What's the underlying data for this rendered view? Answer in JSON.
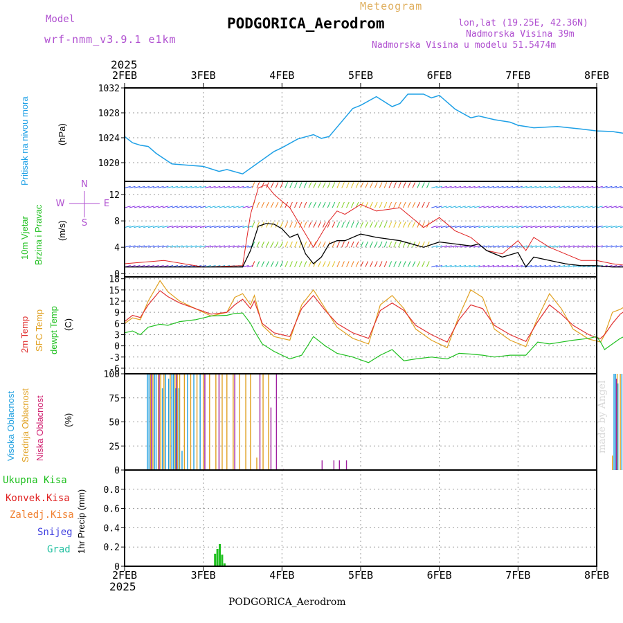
{
  "header": {
    "model_label": "Model",
    "model_name": "wrf-nmm_v3.9.1 e1km",
    "meteogram_label": "Meteogram",
    "station_title": "PODGORICA_Aerodrom",
    "lonlat": "lon,lat (19.25E, 42.36N)",
    "altitude": "Nadmorska Visina 39m",
    "model_altitude": "Nadmorska Visina u modelu 51.5474m",
    "year_top": "2025",
    "year_bottom": "2025",
    "footer_title": "PODGORICA_Aerodrom",
    "credit": "made by Angel"
  },
  "colors": {
    "pressure": "#1ea0e6",
    "wind_speed": "#000000",
    "wind_gust": "#e02020",
    "temp_2m": "#e03030",
    "temp_sfc": "#e0a020",
    "dewpoint": "#20c020",
    "cloud_high": "#20a0e0",
    "cloud_mid": "#e0a020",
    "cloud_low": "#a020a0",
    "precip_total": "#20c020",
    "precip_conv": "#e02020",
    "precip_frz": "#f08030",
    "precip_snow": "#4040e0",
    "precip_grad": "#20c0a0",
    "title_purple": "#b050d0",
    "meteogram_orange": "#e0b060"
  },
  "chart_data": [
    {
      "type": "line",
      "title": "Pritisak na nivou mora",
      "ylabel": "(hPa)",
      "ylim": [
        1017,
        1032
      ],
      "yticks": [
        1020,
        1024,
        1028,
        1032
      ],
      "x_day": [
        0,
        0.1,
        0.2,
        0.3,
        0.4,
        0.6,
        0.8,
        1.0,
        1.2,
        1.3,
        1.5,
        1.7,
        1.9,
        2.0,
        2.2,
        2.4,
        2.5,
        2.6,
        2.8,
        2.9,
        3.0,
        3.2,
        3.4,
        3.5,
        3.6,
        3.8,
        3.9,
        4.0,
        4.2,
        4.4,
        4.5,
        4.7,
        4.9,
        5.0,
        5.2,
        5.5,
        5.8,
        6.0,
        6.2,
        6.4,
        6.5,
        6.7,
        6.9,
        7.0
      ],
      "values": [
        1024.2,
        1023.2,
        1022.8,
        1022.6,
        1021.5,
        1019.8,
        1019.6,
        1019.4,
        1018.6,
        1018.9,
        1018.2,
        1020.0,
        1021.8,
        1022.4,
        1023.8,
        1024.5,
        1023.9,
        1024.2,
        1027.2,
        1028.7,
        1029.2,
        1030.6,
        1029.0,
        1029.5,
        1031.0,
        1031.0,
        1030.4,
        1030.8,
        1028.6,
        1027.2,
        1027.5,
        1026.9,
        1026.5,
        1026.0,
        1025.6,
        1025.8,
        1025.4,
        1025.1,
        1025.0,
        1024.6,
        1025.5,
        1026.4,
        1026.2,
        1026.1
      ]
    },
    {
      "type": "line",
      "title": "10m Vjetar Brzina i Pravac",
      "ylabel": "(m/s)",
      "ylim": [
        -0.5,
        14
      ],
      "yticks": [
        0,
        4,
        8,
        12
      ],
      "compass": [
        "N",
        "W",
        "E",
        "S"
      ],
      "x_day": [
        0,
        0.5,
        1.0,
        1.5,
        1.6,
        1.7,
        1.8,
        1.9,
        2.0,
        2.1,
        2.2,
        2.3,
        2.4,
        2.5,
        2.6,
        2.7,
        2.8,
        3.0,
        3.2,
        3.5,
        3.8,
        4.0,
        4.2,
        4.4,
        4.5,
        4.6,
        4.8,
        5.0,
        5.1,
        5.2,
        5.4,
        5.6,
        5.8,
        6.0,
        6.2,
        6.4,
        6.6,
        6.8,
        7.0
      ],
      "series": [
        {
          "name": "wind",
          "values": [
            1.0,
            1.0,
            1.0,
            1.0,
            3.5,
            7.2,
            7.6,
            7.5,
            6.8,
            5.5,
            6.0,
            3.0,
            1.5,
            2.5,
            4.5,
            5.0,
            5.0,
            6.0,
            5.5,
            5.0,
            4.0,
            4.8,
            4.5,
            4.2,
            4.5,
            3.5,
            2.5,
            3.2,
            1.0,
            2.5,
            2.0,
            1.5,
            1.2,
            1.2,
            1.0,
            1.0,
            1.5,
            2.0,
            1.0
          ]
        },
        {
          "name": "gust",
          "values": [
            1.5,
            2.0,
            1.0,
            1.2,
            9.0,
            13.0,
            13.5,
            12.0,
            11.0,
            10.0,
            8.0,
            6.0,
            4.0,
            6.0,
            8.0,
            9.5,
            9.0,
            10.5,
            9.5,
            10.0,
            7.0,
            8.5,
            6.5,
            5.5,
            4.5,
            3.5,
            3.0,
            5.0,
            3.5,
            5.5,
            4.0,
            3.0,
            2.0,
            2.0,
            1.5,
            1.2,
            3.0,
            2.5,
            1.2
          ]
        }
      ]
    },
    {
      "type": "line",
      "title": "2m Temp / SFC Temp / dewpt Temp",
      "ylabel": "(C)",
      "ylim": [
        -7.5,
        18.5
      ],
      "yticks": [
        -6,
        -3,
        0,
        3,
        6,
        9,
        12,
        15,
        18
      ],
      "x_day": [
        0,
        0.1,
        0.2,
        0.3,
        0.45,
        0.55,
        0.7,
        0.9,
        1.1,
        1.3,
        1.4,
        1.5,
        1.6,
        1.65,
        1.75,
        1.9,
        2.1,
        2.25,
        2.4,
        2.55,
        2.7,
        2.9,
        3.1,
        3.25,
        3.4,
        3.55,
        3.7,
        3.9,
        4.1,
        4.25,
        4.4,
        4.55,
        4.7,
        4.9,
        5.1,
        5.25,
        5.4,
        5.55,
        5.7,
        5.9,
        6.0,
        6.05,
        6.1,
        6.2,
        6.3,
        6.4,
        6.5,
        6.6,
        6.8,
        7.0
      ],
      "series": [
        {
          "name": "2m Temp",
          "values": [
            6.5,
            8.2,
            7.6,
            11.0,
            14.8,
            13.2,
            11.5,
            10.0,
            8.5,
            9.0,
            11.0,
            12.5,
            10.0,
            12.0,
            6.0,
            3.5,
            2.5,
            10.0,
            13.5,
            9.5,
            6.0,
            3.5,
            2.0,
            9.5,
            11.5,
            9.5,
            5.5,
            3.0,
            1.0,
            7.0,
            11.0,
            10.0,
            5.5,
            3.0,
            1.2,
            6.5,
            11.0,
            8.5,
            5.5,
            3.0,
            2.2,
            2.0,
            3.0,
            6.0,
            8.5,
            10.0,
            8.5,
            7.0,
            6.2,
            6.0
          ]
        },
        {
          "name": "SFC Temp",
          "values": [
            6.0,
            7.5,
            7.0,
            12.0,
            17.5,
            14.5,
            12.0,
            10.0,
            8.0,
            9.0,
            13.0,
            14.0,
            11.0,
            13.5,
            5.5,
            2.5,
            1.5,
            11.0,
            15.0,
            10.0,
            5.0,
            2.0,
            0.5,
            11.0,
            13.5,
            10.0,
            4.5,
            1.5,
            -0.5,
            8.0,
            15.0,
            13.0,
            4.5,
            1.5,
            -0.2,
            7.5,
            14.0,
            10.0,
            4.5,
            1.8,
            1.3,
            1.0,
            3.0,
            9.0,
            9.8,
            11.0,
            9.0,
            7.0,
            6.0,
            5.8
          ]
        },
        {
          "name": "dewpt Temp",
          "values": [
            3.5,
            4.0,
            3.0,
            5.0,
            5.8,
            5.5,
            6.5,
            7.0,
            8.0,
            8.2,
            8.7,
            8.8,
            6.0,
            4.0,
            0.5,
            -1.5,
            -3.5,
            -2.5,
            2.5,
            0.0,
            -2.0,
            -3.0,
            -4.5,
            -2.5,
            -1.0,
            -4.0,
            -3.5,
            -3.0,
            -3.5,
            -2.0,
            -2.2,
            -2.5,
            -3.0,
            -2.5,
            -2.5,
            1.0,
            0.5,
            1.0,
            1.5,
            2.0,
            2.5,
            1.0,
            -1.0,
            0.5,
            2.0,
            3.0,
            3.5,
            4.0,
            4.3,
            4.4
          ]
        }
      ]
    },
    {
      "type": "bar",
      "title": "Visoka Oblacnost / Srednja Oblacnost / Niska Oblacnost",
      "ylabel": "(%)",
      "ylim": [
        0,
        100
      ],
      "yticks": [
        0,
        25,
        50,
        75,
        100
      ],
      "series": [
        {
          "name": "Visoka Oblacnost",
          "x_day": [
            0.29,
            0.31,
            0.38,
            0.4,
            0.48,
            0.52,
            0.56,
            0.6,
            0.62,
            0.65,
            0.69,
            0.73,
            0.8,
            0.88,
            0.96,
            6.22,
            6.24,
            6.27,
            6.32,
            6.36,
            6.42,
            6.5,
            6.56,
            6.64,
            6.74,
            6.82,
            6.94,
            7.0
          ],
          "values": [
            100,
            100,
            100,
            100,
            85,
            100,
            95,
            100,
            100,
            85,
            85,
            20,
            100,
            100,
            100,
            100,
            100,
            90,
            100,
            100,
            100,
            100,
            100,
            100,
            100,
            100,
            100,
            100
          ]
        },
        {
          "name": "Srednja Oblacnost",
          "x_day": [
            0.33,
            0.36,
            0.43,
            0.46,
            0.5,
            0.58,
            0.64,
            0.67,
            0.7,
            0.76,
            0.84,
            0.92,
            1.0,
            1.08,
            1.16,
            1.24,
            1.3,
            1.38,
            1.46,
            1.54,
            1.6,
            1.68,
            1.76,
            1.83,
            6.2,
            6.26,
            6.3,
            6.34,
            6.38,
            6.44,
            6.48,
            6.52,
            6.58,
            6.62,
            6.68,
            6.72,
            6.78,
            6.86,
            6.9,
            6.98
          ],
          "values": [
            100,
            100,
            100,
            100,
            100,
            100,
            100,
            100,
            100,
            100,
            100,
            100,
            100,
            100,
            100,
            100,
            100,
            100,
            100,
            100,
            100,
            13,
            100,
            100,
            15,
            100,
            100,
            100,
            100,
            100,
            100,
            100,
            100,
            100,
            100,
            100,
            100,
            100,
            100,
            100
          ]
        },
        {
          "name": "Niska Oblacnost",
          "x_day": [
            0.34,
            0.44,
            0.66,
            1.02,
            1.2,
            1.4,
            1.72,
            1.86,
            1.93,
            2.02,
            2.51,
            2.66,
            2.73,
            2.82,
            6.25,
            6.4,
            6.66
          ],
          "values": [
            100,
            100,
            100,
            100,
            100,
            100,
            100,
            65,
            100,
            1,
            10,
            10,
            10,
            10,
            95,
            100,
            100
          ]
        }
      ]
    },
    {
      "type": "bar",
      "title": "Ukupna Kisa / Konvek.Kisa / Zaledj.Kisa / Snijeg / Grad",
      "ylabel": "1hr Precip (mm)",
      "ylim": [
        0,
        1.0
      ],
      "yticks": [
        0,
        0.2,
        0.4,
        0.6,
        0.8
      ],
      "series": [
        {
          "name": "Ukupna Kisa",
          "x_day": [
            1.15,
            1.18,
            1.21,
            1.24,
            1.27,
            6.9
          ],
          "values": [
            0.13,
            0.18,
            0.23,
            0.12,
            0.03,
            0.04
          ]
        },
        {
          "name": "Konvek.Kisa",
          "x_day": [],
          "values": []
        },
        {
          "name": "Zaledj.Kisa",
          "x_day": [],
          "values": []
        },
        {
          "name": "Snijeg",
          "x_day": [],
          "values": []
        },
        {
          "name": "Grad",
          "x_day": [],
          "values": []
        }
      ]
    }
  ],
  "x_axis": {
    "start": "2FEB",
    "days": [
      "2FEB",
      "3FEB",
      "4FEB",
      "5FEB",
      "6FEB",
      "7FEB",
      "8FEB"
    ]
  },
  "panel_labels": {
    "pressure": [
      "Pritisak na nivou mora",
      "(hPa)"
    ],
    "wind": [
      "10m Vjetar",
      "Brzina i Pravac",
      "(m/s)"
    ],
    "temp": [
      "2m Temp",
      "SFC Temp",
      "dewpt Temp",
      "(C)"
    ],
    "cloud": [
      "Visoka Oblacnost",
      "Srednja Oblacnost",
      "Niska Oblacnost",
      "(%)"
    ],
    "precip": [
      "Ukupna Kisa",
      "Konvek.Kisa",
      "Zaledj.Kisa",
      "Snijeg",
      "Grad",
      "1hr Precip (mm)"
    ]
  },
  "compass_labels": [
    "N",
    "W",
    "E",
    "S"
  ]
}
